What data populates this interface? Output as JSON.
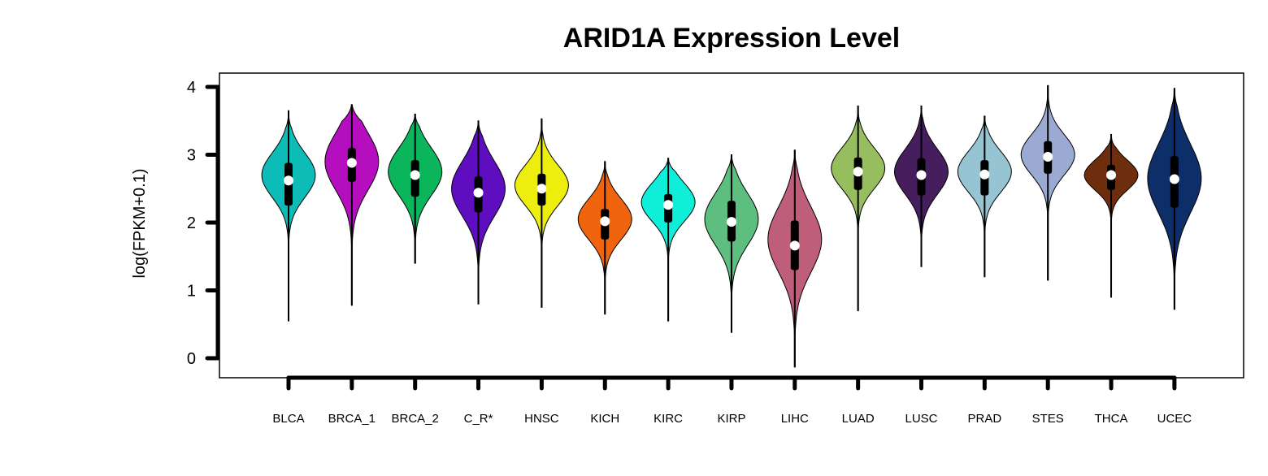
{
  "chart_data": {
    "type": "violin",
    "title": "ARID1A Expression Level",
    "xlabel": "",
    "ylabel": "log(FPKM+0.1)",
    "ylim": [
      0,
      4
    ],
    "yticks": [
      0,
      1,
      2,
      3,
      4
    ],
    "grid": false,
    "categories": [
      "BLCA",
      "BRCA_1",
      "BRCA_2",
      "C_R*",
      "HNSC",
      "KICH",
      "KIRC",
      "KIRP",
      "LIHC",
      "LUAD",
      "LUSC",
      "PRAD",
      "STES",
      "THCA",
      "UCEC"
    ],
    "colors": [
      "#0EBCB7",
      "#B40EBE",
      "#0BB55C",
      "#5E0EBE",
      "#EEEE0E",
      "#F0640E",
      "#0EEED8",
      "#5EBE80",
      "#BE5E7A",
      "#96BE5E",
      "#461E5E",
      "#96C4D2",
      "#9AAAD2",
      "#6E2E0E",
      "#0E2E6A"
    ],
    "series": [
      {
        "name": "BLCA",
        "min": 0.55,
        "max": 3.65,
        "q1": 2.25,
        "median": 2.62,
        "q3": 2.88,
        "peak": 2.7,
        "spread": 0.33
      },
      {
        "name": "BRCA_1",
        "min": 0.78,
        "max": 3.74,
        "q1": 2.6,
        "median": 2.88,
        "q3": 3.1,
        "peak": 2.9,
        "spread": 0.42
      },
      {
        "name": "BRCA_2",
        "min": 1.4,
        "max": 3.6,
        "q1": 2.38,
        "median": 2.7,
        "q3": 2.92,
        "peak": 2.75,
        "spread": 0.35
      },
      {
        "name": "C_R*",
        "min": 0.8,
        "max": 3.5,
        "q1": 2.15,
        "median": 2.44,
        "q3": 2.68,
        "peak": 2.5,
        "spread": 0.4
      },
      {
        "name": "HNSC",
        "min": 0.75,
        "max": 3.53,
        "q1": 2.25,
        "median": 2.5,
        "q3": 2.72,
        "peak": 2.55,
        "spread": 0.3
      },
      {
        "name": "KICH",
        "min": 0.65,
        "max": 2.9,
        "q1": 1.75,
        "median": 2.02,
        "q3": 2.2,
        "peak": 2.05,
        "spread": 0.3
      },
      {
        "name": "KIRC",
        "min": 0.55,
        "max": 2.95,
        "q1": 2.0,
        "median": 2.26,
        "q3": 2.42,
        "peak": 2.3,
        "spread": 0.28
      },
      {
        "name": "KIRP",
        "min": 0.38,
        "max": 3.0,
        "q1": 1.72,
        "median": 2.01,
        "q3": 2.32,
        "peak": 2.05,
        "spread": 0.38
      },
      {
        "name": "LIHC",
        "min": -0.13,
        "max": 3.07,
        "q1": 1.3,
        "median": 1.66,
        "q3": 2.03,
        "peak": 1.75,
        "spread": 0.48
      },
      {
        "name": "LUAD",
        "min": 0.7,
        "max": 3.72,
        "q1": 2.48,
        "median": 2.75,
        "q3": 2.96,
        "peak": 2.8,
        "spread": 0.3
      },
      {
        "name": "LUSC",
        "min": 1.35,
        "max": 3.72,
        "q1": 2.4,
        "median": 2.7,
        "q3": 2.95,
        "peak": 2.75,
        "spread": 0.33
      },
      {
        "name": "PRAD",
        "min": 1.2,
        "max": 3.57,
        "q1": 2.4,
        "median": 2.71,
        "q3": 2.92,
        "peak": 2.75,
        "spread": 0.3
      },
      {
        "name": "STES",
        "min": 1.15,
        "max": 4.02,
        "q1": 2.72,
        "median": 2.97,
        "q3": 3.2,
        "peak": 3.0,
        "spread": 0.3
      },
      {
        "name": "THCA",
        "min": 0.9,
        "max": 3.3,
        "q1": 2.48,
        "median": 2.7,
        "q3": 2.85,
        "peak": 2.7,
        "spread": 0.22
      },
      {
        "name": "UCEC",
        "min": 0.72,
        "max": 3.98,
        "q1": 2.22,
        "median": 2.64,
        "q3": 2.98,
        "peak": 2.65,
        "spread": 0.5
      }
    ]
  }
}
